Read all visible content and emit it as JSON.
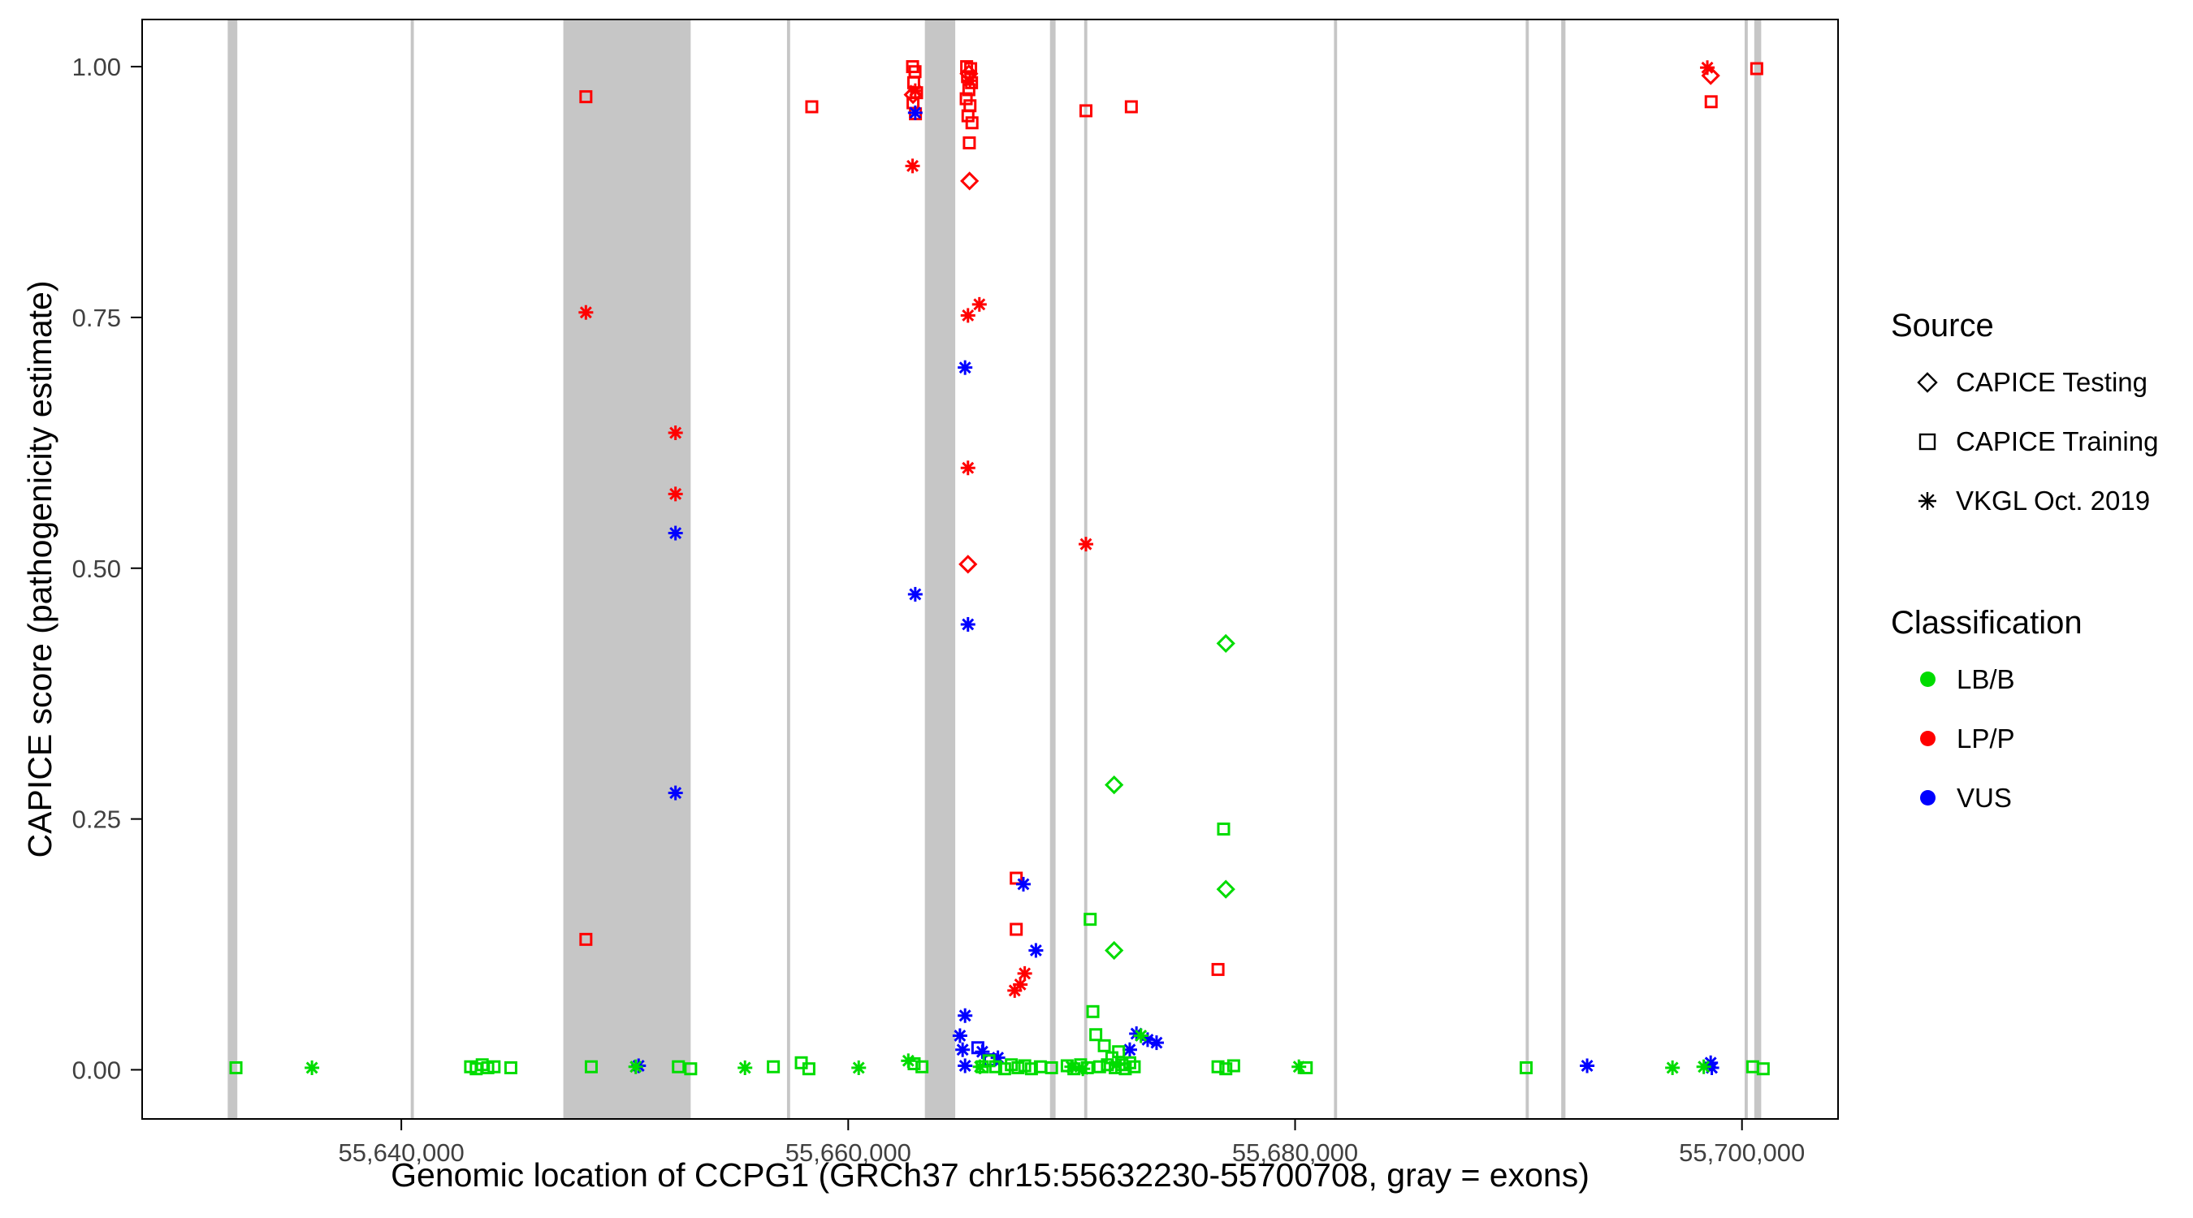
{
  "axes_note": "scatter plot of CAPICE pathogenicity scores along the CCPG1 gene; gray vertical bands mark exons",
  "legend": {
    "source": {
      "title": "Source",
      "items": [
        {
          "label": "CAPICE Testing",
          "marker": "diamond"
        },
        {
          "label": "CAPICE Training",
          "marker": "square"
        },
        {
          "label": "VKGL Oct. 2019",
          "marker": "asterisk"
        }
      ]
    },
    "classification": {
      "title": "Classification",
      "items": [
        {
          "label": "LB/B",
          "color": "#00DC00"
        },
        {
          "label": "LP/P",
          "color": "#FF0000"
        },
        {
          "label": "VUS",
          "color": "#0000FF"
        }
      ]
    }
  },
  "chart_data": {
    "type": "scatter",
    "title": "",
    "xlabel": "Genomic location of CCPG1 (GRCh37 chr15:55632230-55700708, gray = exons)",
    "ylabel": "CAPICE score (pathogenicity estimate)",
    "xlim": [
      55628400,
      55704300
    ],
    "ylim": [
      -0.049,
      1.047
    ],
    "grid": false,
    "legend_position": "right",
    "x_ticks": [
      {
        "value": 55640000,
        "label": "55,640,000"
      },
      {
        "value": 55660000,
        "label": "55,660,000"
      },
      {
        "value": 55680000,
        "label": "55,680,000"
      },
      {
        "value": 55700000,
        "label": "55,700,000"
      }
    ],
    "y_ticks": [
      {
        "value": 0.0,
        "label": "0.00"
      },
      {
        "value": 0.25,
        "label": "0.25"
      },
      {
        "value": 0.5,
        "label": "0.50"
      },
      {
        "value": 0.75,
        "label": "0.75"
      },
      {
        "value": 1.0,
        "label": "1.00"
      }
    ],
    "exon_color": "#C6C6C6",
    "exons": [
      [
        55632230,
        55632660
      ],
      [
        55640420,
        55640560
      ],
      [
        55647250,
        55652950
      ],
      [
        55657260,
        55657400
      ],
      [
        55663430,
        55664790
      ],
      [
        55669030,
        55669280
      ],
      [
        55670560,
        55670700
      ],
      [
        55681740,
        55681880
      ],
      [
        55690320,
        55690460
      ],
      [
        55691910,
        55692100
      ],
      [
        55700120,
        55700260
      ],
      [
        55700550,
        55700860
      ]
    ],
    "series_colors": {
      "LB/B": "#00DC00",
      "LP/P": "#FF0000",
      "VUS": "#0000FF"
    },
    "source_labels": {
      "testing": "CAPICE Testing",
      "training": "CAPICE Training",
      "vkgl": "VKGL Oct. 2019"
    },
    "marker_by_source": {
      "testing": "diamond",
      "training": "square",
      "vkgl": "asterisk"
    },
    "points_columns": [
      "genomic_position",
      "capice_score",
      "source",
      "classification"
    ],
    "points": [
      [
        55648260,
        0.97,
        "training",
        "LP/P"
      ],
      [
        55658370,
        0.96,
        "training",
        "LP/P"
      ],
      [
        55662880,
        1.0,
        "training",
        "LP/P"
      ],
      [
        55662990,
        0.995,
        "training",
        "LP/P"
      ],
      [
        55662930,
        0.984,
        "training",
        "LP/P"
      ],
      [
        55663060,
        0.974,
        "training",
        "LP/P"
      ],
      [
        55662900,
        0.964,
        "training",
        "LP/P"
      ],
      [
        55663010,
        0.953,
        "training",
        "LP/P"
      ],
      [
        55665300,
        1.0,
        "training",
        "LP/P"
      ],
      [
        55665480,
        0.998,
        "training",
        "LP/P"
      ],
      [
        55665340,
        0.99,
        "training",
        "LP/P"
      ],
      [
        55665520,
        0.984,
        "training",
        "LP/P"
      ],
      [
        55665400,
        0.977,
        "training",
        "LP/P"
      ],
      [
        55665280,
        0.968,
        "training",
        "LP/P"
      ],
      [
        55665450,
        0.961,
        "training",
        "LP/P"
      ],
      [
        55665360,
        0.951,
        "training",
        "LP/P"
      ],
      [
        55665540,
        0.944,
        "training",
        "LP/P"
      ],
      [
        55665420,
        0.924,
        "training",
        "LP/P"
      ],
      [
        55670640,
        0.956,
        "training",
        "LP/P"
      ],
      [
        55672670,
        0.96,
        "training",
        "LP/P"
      ],
      [
        55698620,
        0.965,
        "training",
        "LP/P"
      ],
      [
        55700660,
        0.998,
        "training",
        "LP/P"
      ],
      [
        55667520,
        0.191,
        "training",
        "LP/P"
      ],
      [
        55667520,
        0.14,
        "training",
        "LP/P"
      ],
      [
        55648260,
        0.13,
        "training",
        "LP/P"
      ],
      [
        55676550,
        0.1,
        "training",
        "LP/P"
      ],
      [
        55662900,
        0.972,
        "testing",
        "LP/P"
      ],
      [
        55665400,
        0.993,
        "testing",
        "LP/P"
      ],
      [
        55665430,
        0.886,
        "testing",
        "LP/P"
      ],
      [
        55665360,
        0.504,
        "testing",
        "LP/P"
      ],
      [
        55698600,
        0.991,
        "testing",
        "LP/P"
      ],
      [
        55663000,
        0.976,
        "vkgl",
        "LP/P"
      ],
      [
        55662880,
        0.901,
        "vkgl",
        "LP/P"
      ],
      [
        55665450,
        0.986,
        "vkgl",
        "LP/P"
      ],
      [
        55648260,
        0.755,
        "vkgl",
        "LP/P"
      ],
      [
        55665870,
        0.763,
        "vkgl",
        "LP/P"
      ],
      [
        55665360,
        0.752,
        "vkgl",
        "LP/P"
      ],
      [
        55652270,
        0.635,
        "vkgl",
        "LP/P"
      ],
      [
        55652270,
        0.574,
        "vkgl",
        "LP/P"
      ],
      [
        55665360,
        0.6,
        "vkgl",
        "LP/P"
      ],
      [
        55670640,
        0.524,
        "vkgl",
        "LP/P"
      ],
      [
        55667900,
        0.096,
        "vkgl",
        "LP/P"
      ],
      [
        55667700,
        0.085,
        "vkgl",
        "LP/P"
      ],
      [
        55667450,
        0.079,
        "vkgl",
        "LP/P"
      ],
      [
        55698450,
        0.999,
        "vkgl",
        "LP/P"
      ],
      [
        55663000,
        0.954,
        "vkgl",
        "VUS"
      ],
      [
        55665230,
        0.7,
        "vkgl",
        "VUS"
      ],
      [
        55652270,
        0.535,
        "vkgl",
        "VUS"
      ],
      [
        55663000,
        0.474,
        "vkgl",
        "VUS"
      ],
      [
        55665360,
        0.444,
        "vkgl",
        "VUS"
      ],
      [
        55652270,
        0.276,
        "vkgl",
        "VUS"
      ],
      [
        55667840,
        0.185,
        "vkgl",
        "VUS"
      ],
      [
        55668400,
        0.119,
        "vkgl",
        "VUS"
      ],
      [
        55665230,
        0.054,
        "vkgl",
        "VUS"
      ],
      [
        55665000,
        0.034,
        "vkgl",
        "VUS"
      ],
      [
        55665120,
        0.02,
        "vkgl",
        "VUS"
      ],
      [
        55672900,
        0.036,
        "vkgl",
        "VUS"
      ],
      [
        55673400,
        0.03,
        "vkgl",
        "VUS"
      ],
      [
        55673800,
        0.027,
        "vkgl",
        "VUS"
      ],
      [
        55672600,
        0.02,
        "vkgl",
        "VUS"
      ],
      [
        55666700,
        0.012,
        "vkgl",
        "VUS"
      ],
      [
        55650620,
        0.004,
        "vkgl",
        "VUS"
      ],
      [
        55665230,
        0.004,
        "vkgl",
        "VUS"
      ],
      [
        55666000,
        0.018,
        "vkgl",
        "VUS"
      ],
      [
        55693070,
        0.004,
        "vkgl",
        "VUS"
      ],
      [
        55698600,
        0.007,
        "vkgl",
        "VUS"
      ],
      [
        55698650,
        0.002,
        "vkgl",
        "VUS"
      ],
      [
        55665800,
        0.022,
        "training",
        "VUS"
      ],
      [
        55666350,
        0.01,
        "training",
        "VUS"
      ],
      [
        55676900,
        0.425,
        "testing",
        "LB/B"
      ],
      [
        55671900,
        0.284,
        "testing",
        "LB/B"
      ],
      [
        55676900,
        0.18,
        "testing",
        "LB/B"
      ],
      [
        55671900,
        0.119,
        "testing",
        "LB/B"
      ],
      [
        55670830,
        0.15,
        "training",
        "LB/B"
      ],
      [
        55676800,
        0.24,
        "training",
        "LB/B"
      ],
      [
        55670950,
        0.058,
        "training",
        "LB/B"
      ],
      [
        55671080,
        0.035,
        "training",
        "LB/B"
      ],
      [
        55671460,
        0.024,
        "training",
        "LB/B"
      ],
      [
        55672100,
        0.018,
        "training",
        "LB/B"
      ],
      [
        55671800,
        0.012,
        "training",
        "LB/B"
      ],
      [
        55632600,
        0.002,
        "training",
        "LB/B"
      ],
      [
        55643100,
        0.003,
        "training",
        "LB/B"
      ],
      [
        55643350,
        0.001,
        "training",
        "LB/B"
      ],
      [
        55643620,
        0.005,
        "training",
        "LB/B"
      ],
      [
        55643870,
        0.002,
        "training",
        "LB/B"
      ],
      [
        55644150,
        0.003,
        "training",
        "LB/B"
      ],
      [
        55644900,
        0.002,
        "training",
        "LB/B"
      ],
      [
        55648500,
        0.003,
        "training",
        "LB/B"
      ],
      [
        55652400,
        0.003,
        "training",
        "LB/B"
      ],
      [
        55652950,
        0.001,
        "training",
        "LB/B"
      ],
      [
        55656650,
        0.003,
        "training",
        "LB/B"
      ],
      [
        55657900,
        0.007,
        "training",
        "LB/B"
      ],
      [
        55658240,
        0.001,
        "training",
        "LB/B"
      ],
      [
        55662950,
        0.006,
        "training",
        "LB/B"
      ],
      [
        55663300,
        0.003,
        "training",
        "LB/B"
      ],
      [
        55666000,
        0.003,
        "training",
        "LB/B"
      ],
      [
        55666300,
        0.009,
        "training",
        "LB/B"
      ],
      [
        55666600,
        0.003,
        "training",
        "LB/B"
      ],
      [
        55667000,
        0.001,
        "training",
        "LB/B"
      ],
      [
        55667300,
        0.005,
        "training",
        "LB/B"
      ],
      [
        55667600,
        0.002,
        "training",
        "LB/B"
      ],
      [
        55667900,
        0.004,
        "training",
        "LB/B"
      ],
      [
        55668200,
        0.001,
        "training",
        "LB/B"
      ],
      [
        55668600,
        0.003,
        "training",
        "LB/B"
      ],
      [
        55669100,
        0.002,
        "training",
        "LB/B"
      ],
      [
        55669800,
        0.004,
        "training",
        "LB/B"
      ],
      [
        55670100,
        0.001,
        "training",
        "LB/B"
      ],
      [
        55670400,
        0.005,
        "training",
        "LB/B"
      ],
      [
        55670700,
        0.002,
        "training",
        "LB/B"
      ],
      [
        55671250,
        0.003,
        "training",
        "LB/B"
      ],
      [
        55671600,
        0.005,
        "training",
        "LB/B"
      ],
      [
        55671950,
        0.002,
        "training",
        "LB/B"
      ],
      [
        55672250,
        0.005,
        "training",
        "LB/B"
      ],
      [
        55672400,
        0.001,
        "training",
        "LB/B"
      ],
      [
        55672600,
        0.007,
        "training",
        "LB/B"
      ],
      [
        55672800,
        0.003,
        "training",
        "LB/B"
      ],
      [
        55676550,
        0.003,
        "training",
        "LB/B"
      ],
      [
        55676900,
        0.001,
        "training",
        "LB/B"
      ],
      [
        55677250,
        0.004,
        "training",
        "LB/B"
      ],
      [
        55680500,
        0.002,
        "training",
        "LB/B"
      ],
      [
        55690340,
        0.002,
        "training",
        "LB/B"
      ],
      [
        55700480,
        0.003,
        "training",
        "LB/B"
      ],
      [
        55700950,
        0.001,
        "training",
        "LB/B"
      ],
      [
        55636000,
        0.002,
        "vkgl",
        "LB/B"
      ],
      [
        55650490,
        0.003,
        "vkgl",
        "LB/B"
      ],
      [
        55655380,
        0.002,
        "vkgl",
        "LB/B"
      ],
      [
        55660470,
        0.002,
        "vkgl",
        "LB/B"
      ],
      [
        55662690,
        0.009,
        "vkgl",
        "LB/B"
      ],
      [
        55665900,
        0.003,
        "vkgl",
        "LB/B"
      ],
      [
        55670000,
        0.003,
        "vkgl",
        "LB/B"
      ],
      [
        55670500,
        0.001,
        "vkgl",
        "LB/B"
      ],
      [
        55672000,
        0.005,
        "vkgl",
        "LB/B"
      ],
      [
        55673100,
        0.034,
        "vkgl",
        "LB/B"
      ],
      [
        55680170,
        0.003,
        "vkgl",
        "LB/B"
      ],
      [
        55696890,
        0.002,
        "vkgl",
        "LB/B"
      ],
      [
        55698290,
        0.003,
        "vkgl",
        "LB/B"
      ]
    ]
  }
}
